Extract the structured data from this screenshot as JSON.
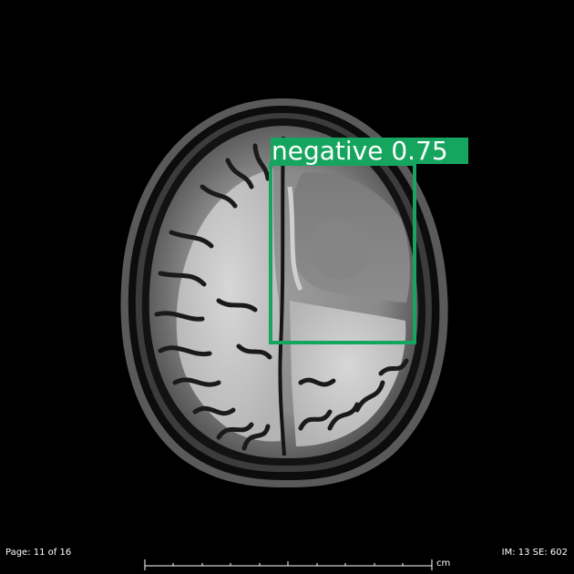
{
  "detection": {
    "label": "negative 0.75",
    "class": "negative",
    "confidence": 0.75,
    "box_color": "#16a55e"
  },
  "overlay": {
    "page_info": "Page: 11 of 16",
    "image_info": "IM: 13 SE: 602",
    "scale_unit": "cm"
  },
  "colors": {
    "background": "#000000",
    "text": "#ffffff"
  }
}
